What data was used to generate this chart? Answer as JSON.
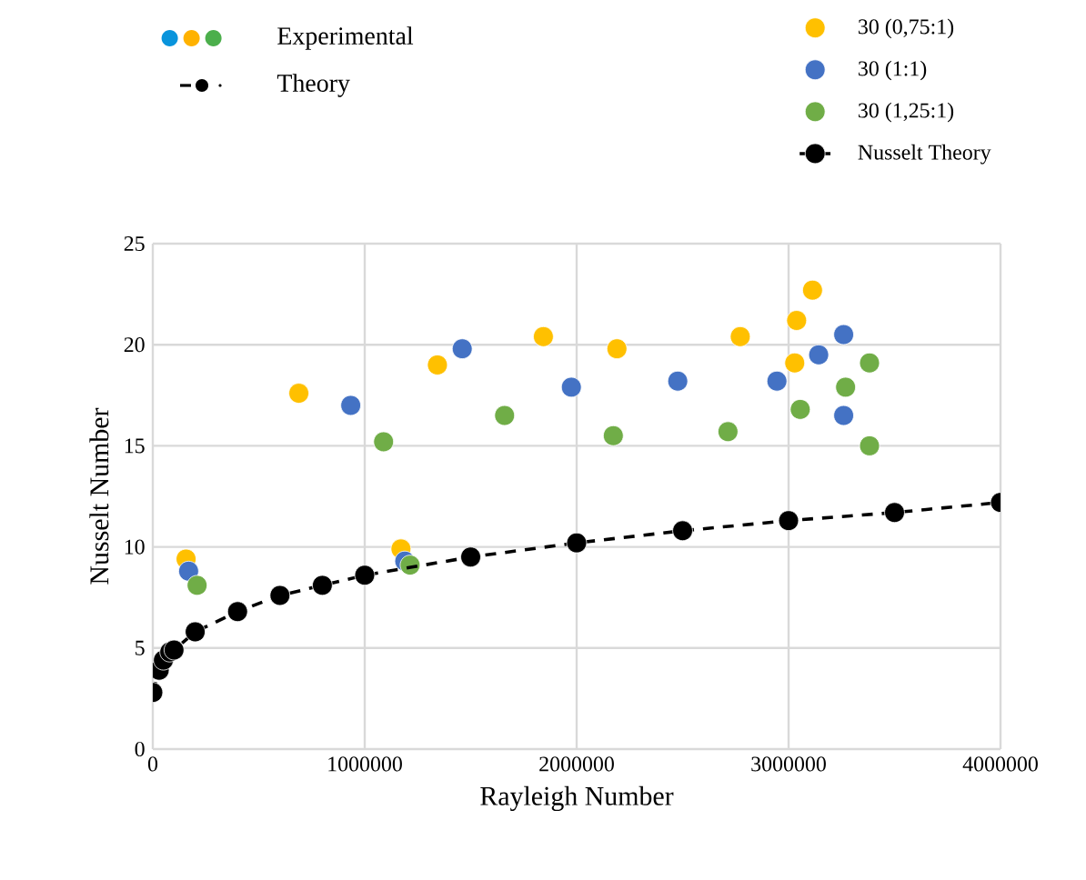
{
  "chart_data": {
    "type": "scatter",
    "xlabel": "Rayleigh Number",
    "ylabel": "Nusselt Number",
    "annotations": [
      "Experimental",
      "Theory"
    ],
    "xlim": [
      0,
      4000000
    ],
    "ylim": [
      0,
      25
    ],
    "xticks": [
      0,
      1000000,
      2000000,
      3000000,
      4000000
    ],
    "yticks": [
      0,
      5,
      10,
      15,
      20,
      25
    ],
    "grid": true,
    "legend": "top right",
    "marker": "circle",
    "series": [
      {
        "name": "30 (0,75:1)",
        "color": "#ffc000",
        "x": [
          157000,
          689000,
          1171000,
          1343000,
          1843000,
          2190000,
          2772000,
          3029000,
          3038000,
          3113000
        ],
        "values": [
          9.4,
          17.6,
          9.9,
          19.0,
          20.4,
          19.8,
          20.4,
          19.1,
          21.2,
          22.7
        ]
      },
      {
        "name": "30 (1:1)",
        "color": "#4472c4",
        "x": [
          169000,
          934000,
          1189000,
          1460000,
          1975000,
          2477000,
          2945000,
          3142000,
          3260000,
          3260000
        ],
        "values": [
          8.8,
          17.0,
          9.3,
          19.8,
          17.9,
          18.2,
          18.2,
          19.5,
          20.5,
          16.5
        ]
      },
      {
        "name": "30 (1,25:1)",
        "color": "#70ad47",
        "x": [
          209000,
          1089000,
          1214000,
          1660000,
          2173000,
          2714000,
          3055000,
          3269000,
          3382000,
          3382000
        ],
        "values": [
          8.1,
          15.2,
          9.1,
          16.5,
          15.5,
          15.7,
          16.8,
          17.9,
          19.1,
          15.0
        ]
      },
      {
        "name": "Nusselt Theory",
        "color": "#000000",
        "type": "line",
        "line_style": "dashed",
        "x": [
          0,
          30000,
          50000,
          80000,
          100000,
          200000,
          400000,
          600000,
          800000,
          1000000,
          1500000,
          2000000,
          2500000,
          3000000,
          3500000,
          4000000
        ],
        "values": [
          2.8,
          3.9,
          4.4,
          4.8,
          4.9,
          5.8,
          6.8,
          7.6,
          8.1,
          8.6,
          9.5,
          10.2,
          10.8,
          11.3,
          11.7,
          12.2
        ]
      }
    ]
  }
}
